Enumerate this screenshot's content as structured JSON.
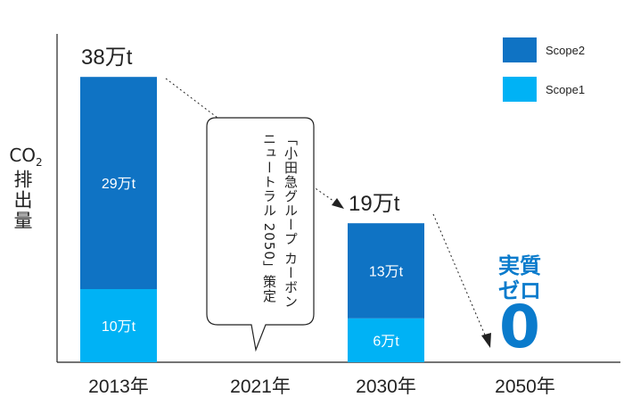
{
  "chart_data": {
    "type": "bar",
    "categories": [
      "2013年",
      "2021年",
      "2030年",
      "2050年"
    ],
    "series": [
      {
        "name": "Scope1",
        "values": [
          10,
          null,
          6,
          0
        ],
        "labels": [
          "10万t",
          "",
          "6万t",
          ""
        ],
        "color": "#00b2f5"
      },
      {
        "name": "Scope2",
        "values": [
          29,
          null,
          13,
          0
        ],
        "labels": [
          "29万t",
          "",
          "13万t",
          ""
        ],
        "color": "#0f73c4"
      }
    ],
    "totals": [
      "38万t",
      "",
      "19万t",
      ""
    ],
    "ylabel_line1": "CO",
    "ylabel_sub": "2",
    "ylabel_line2": "排出量",
    "ylim": [
      0,
      40
    ],
    "legend_position": "top-right",
    "annotation": "「小田急グループ カーボンニュートラル 2050」策定",
    "zero_label": "実質ゼロ",
    "zero_value": "0"
  }
}
